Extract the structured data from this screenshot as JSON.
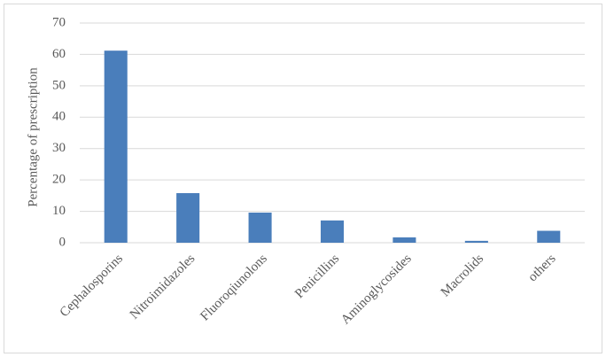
{
  "chart_data": {
    "type": "bar",
    "y_label": "Percentage of prescription",
    "categories": [
      "Cephalosporins",
      "Nitroimidazoles",
      "Fluoroqiunolons",
      "Penicillins",
      "Aminoglycosides",
      "Macrolids",
      "others"
    ],
    "values": [
      61.2,
      15.8,
      9.6,
      7.1,
      1.7,
      0.6,
      3.8
    ],
    "color": "#4a7ebb",
    "ylim": [
      0,
      70
    ],
    "yticks": [
      0,
      10,
      20,
      30,
      40,
      50,
      60,
      70
    ],
    "grid": true
  }
}
